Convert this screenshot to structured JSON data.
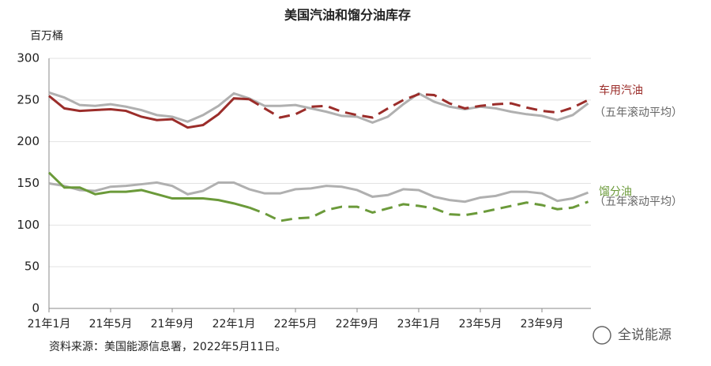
{
  "chart_data": {
    "type": "line",
    "title": "美国汽油和馏分油库存",
    "y_label": "百万桶",
    "source": "资料来源：美国能源信息署，2022年5月11日。",
    "watermark": "全说能源",
    "categories": [
      "21年1月",
      null,
      null,
      null,
      "21年5月",
      null,
      null,
      null,
      "21年9月",
      null,
      null,
      null,
      "22年1月",
      null,
      null,
      null,
      "22年5月",
      null,
      null,
      null,
      "22年9月",
      null,
      null,
      null,
      "23年1月",
      null,
      null,
      null,
      "23年5月",
      null,
      null,
      null,
      "23年9月",
      null,
      null,
      null
    ],
    "ylim": [
      0,
      300
    ],
    "yticks": [
      0,
      50,
      100,
      150,
      200,
      250,
      300
    ],
    "series": [
      {
        "name": "（五年滚动平均）",
        "color": "#b0b0b0",
        "values": [
          259,
          253,
          244,
          243,
          245,
          242,
          238,
          232,
          230,
          224,
          232,
          243,
          258,
          252,
          243,
          243,
          244,
          240,
          236,
          231,
          230,
          223,
          230,
          245,
          258,
          248,
          242,
          239,
          242,
          240,
          236,
          233,
          231,
          226,
          232,
          246
        ]
      },
      {
        "name": "（五年滚动平均）",
        "color": "#b0b0b0",
        "values": [
          150,
          147,
          142,
          141,
          146,
          147,
          149,
          151,
          147,
          137,
          141,
          151,
          151,
          143,
          138,
          138,
          143,
          144,
          147,
          146,
          142,
          134,
          136,
          143,
          142,
          134,
          130,
          128,
          133,
          135,
          140,
          140,
          138,
          129,
          132,
          139
        ]
      },
      {
        "name": "车用汽油",
        "color": "#9b2d2a",
        "dash_from": 13,
        "values": [
          255,
          240,
          237,
          238,
          239,
          237,
          230,
          226,
          227,
          217,
          220,
          233,
          252,
          251,
          240,
          229,
          233,
          242,
          243,
          236,
          232,
          229,
          240,
          250,
          257,
          256,
          246,
          240,
          243,
          245,
          246,
          241,
          237,
          235,
          241,
          250
        ]
      },
      {
        "name": "馏分油",
        "color": "#6b9a3a",
        "dash_from": 13,
        "values": [
          163,
          145,
          145,
          137,
          140,
          140,
          142,
          137,
          132,
          132,
          132,
          130,
          126,
          121,
          114,
          105,
          108,
          109,
          118,
          122,
          122,
          115,
          120,
          125,
          123,
          120,
          113,
          112,
          115,
          119,
          123,
          127,
          124,
          119,
          121,
          128
        ]
      }
    ]
  }
}
